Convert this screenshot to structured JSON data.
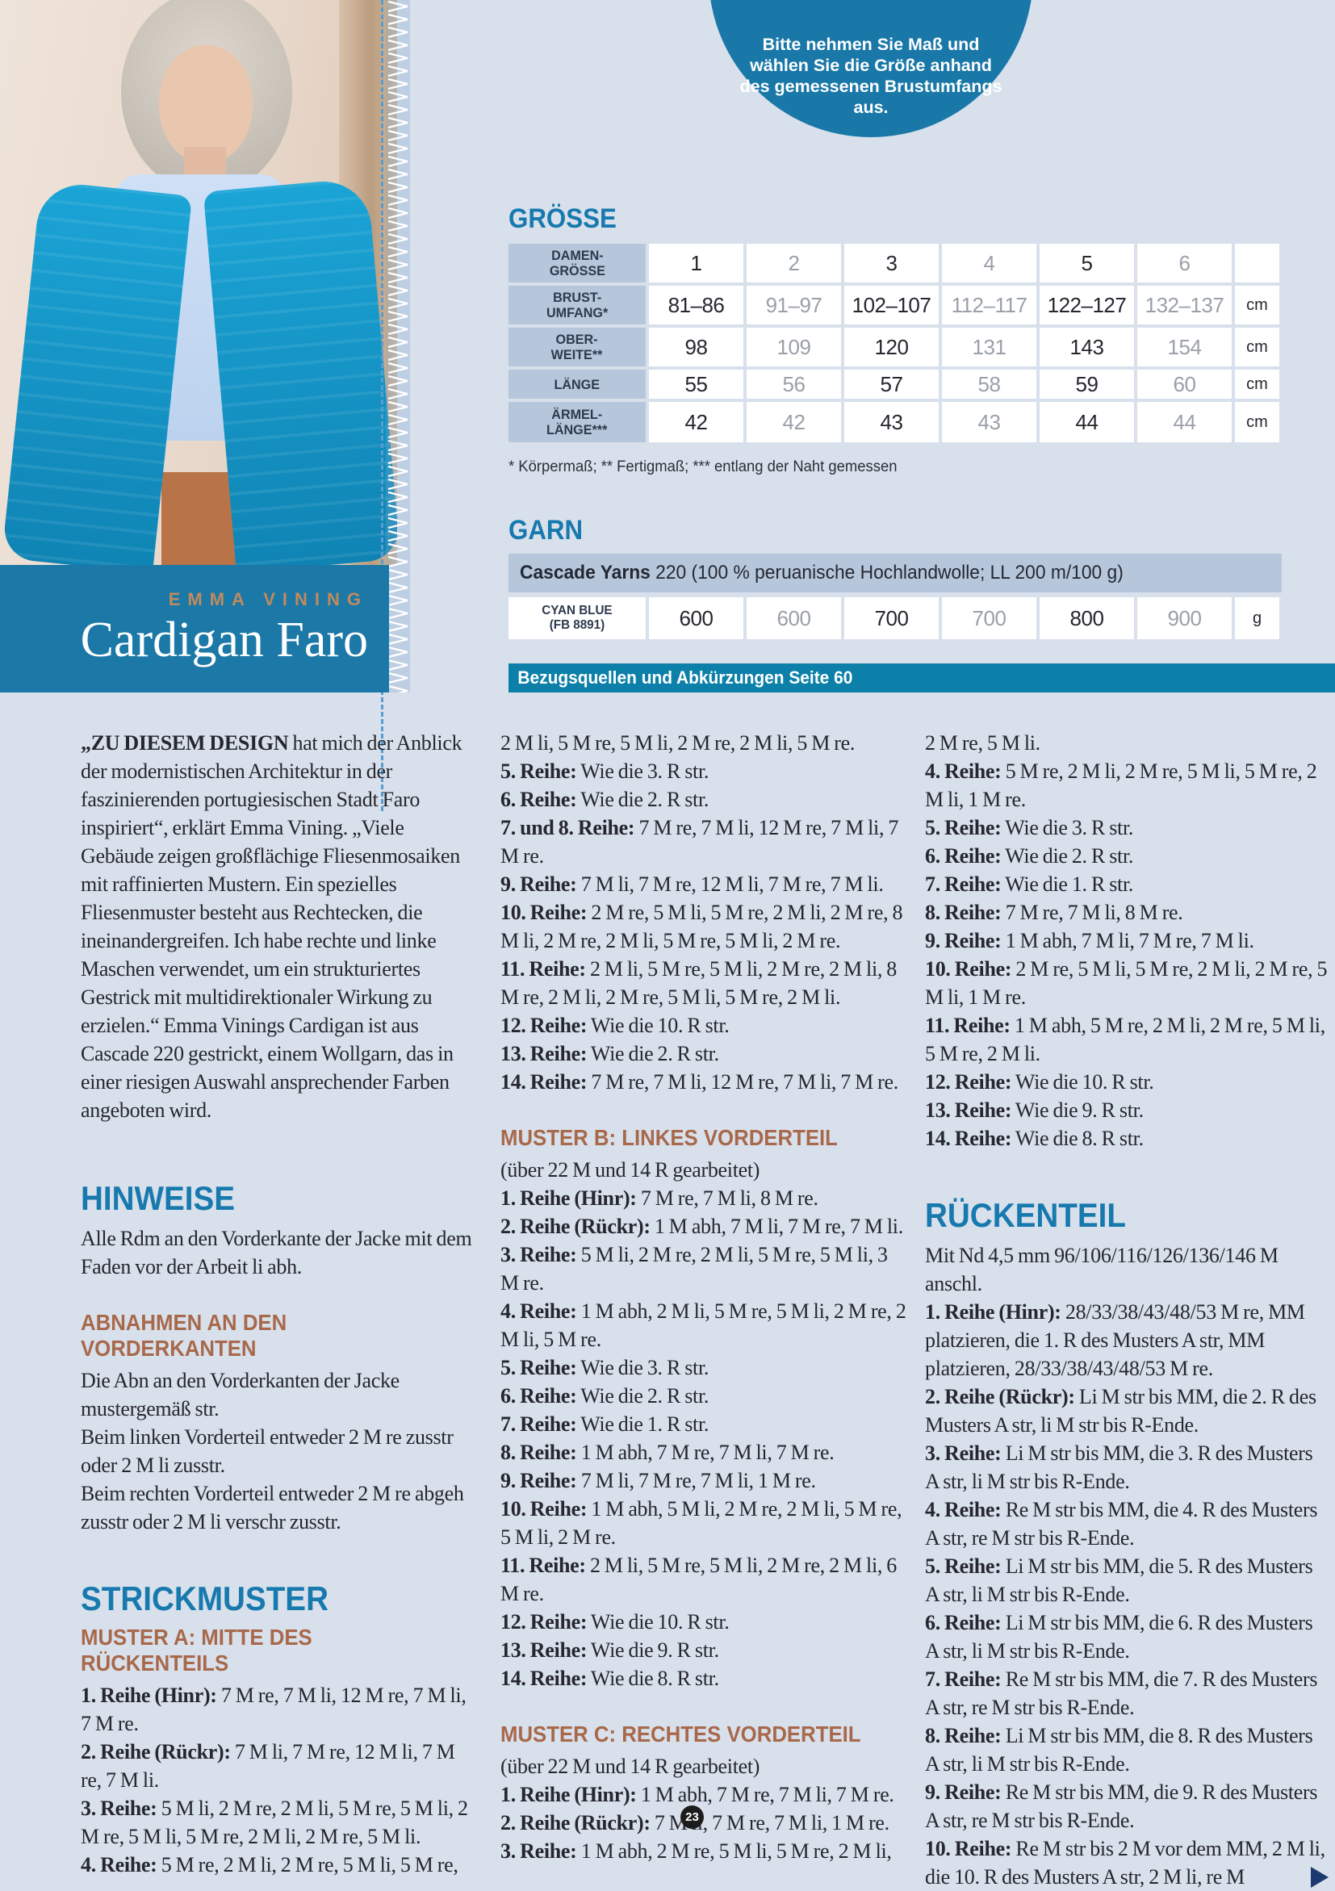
{
  "colors": {
    "accent_blue": "#1779ad",
    "banner_blue": "#1b78a7",
    "teal_bar": "#0c80a9",
    "subhead_brown": "#a8684a",
    "header_cell": "#b7c7db",
    "author_tan": "#c18a5d",
    "page_bg": "#d8e0ec"
  },
  "bubble": {
    "text": "Bitte nehmen Sie Maß und wählen Sie die Größe anhand des gemessenen Brustumfangs aus."
  },
  "byline": {
    "author": "EMMA VINING",
    "title": "Cardigan Faro"
  },
  "size_section": {
    "title": "GRÖSSE",
    "rows": [
      {
        "label": "DAMEN-\nGRÖSSE",
        "values": [
          "1",
          "2",
          "3",
          "4",
          "5",
          "6"
        ],
        "unit": ""
      },
      {
        "label": "BRUST-\nUMFANG*",
        "values": [
          "81–86",
          "91–97",
          "102–107",
          "112–117",
          "122–127",
          "132–137"
        ],
        "unit": "cm"
      },
      {
        "label": "OBER-\nWEITE**",
        "values": [
          "98",
          "109",
          "120",
          "131",
          "143",
          "154"
        ],
        "unit": "cm"
      },
      {
        "label": "LÄNGE",
        "values": [
          "55",
          "56",
          "57",
          "58",
          "59",
          "60"
        ],
        "unit": "cm"
      },
      {
        "label": "ÄRMEL-\nLÄNGE***",
        "values": [
          "42",
          "42",
          "43",
          "43",
          "44",
          "44"
        ],
        "unit": "cm"
      }
    ],
    "footnote": "* Körpermaß; ** Fertigmaß; *** entlang der Naht gemessen"
  },
  "garn_section": {
    "title": "GARN",
    "yarn_bold": "Cascade Yarns",
    "yarn_rest": " 220 (100 % peruanische Hochlandwolle; LL 200 m/100 g)",
    "color_label": "CYAN BLUE\n(FB 8891)",
    "values": [
      "600",
      "600",
      "700",
      "700",
      "800",
      "900"
    ],
    "unit": "g"
  },
  "ref_bar": {
    "text": "Bezugsquellen und Abkürzungen Seite 60"
  },
  "page": {
    "page_number": "23"
  },
  "columns": {
    "left": [
      {
        "type": "intro",
        "bold": "„ZU DIESEM DESIGN",
        "text": " hat mich der Anblick der modernistischen Architektur in der faszinierenden portugiesischen Stadt Faro inspiriert“, erklärt Emma Vining. „Viele Gebäude zeigen großflächige Fliesenmosaiken mit raffinierten Mustern. Ein spezielles Fliesenmuster besteht aus Rechtecken, die ineinandergreifen. Ich habe rechte und linke Maschen verwendet, um ein strukturiertes Gestrick mit multidirektionaler Wirkung zu erzielen.“ Emma Vinings Cardigan ist aus Cascade 220 gestrickt, einem Wollgarn, das in einer riesigen Auswahl ansprechender Farben angeboten wird."
      },
      {
        "type": "h1",
        "text": "HINWEISE"
      },
      {
        "type": "p",
        "text": "Alle Rdm an den Vorderkante der Jacke mit dem Faden vor der Arbeit li abh."
      },
      {
        "type": "h2",
        "text": "ABNAHMEN AN DEN VORDERKANTEN"
      },
      {
        "type": "p",
        "text": "Die Abn an den Vorderkanten der Jacke mustergemäß str."
      },
      {
        "type": "p",
        "text": "Beim linken Vorderteil entweder 2 M re zusstr oder 2 M li zusstr."
      },
      {
        "type": "p",
        "text": "Beim rechten Vorderteil entweder 2 M re abgeh zusstr oder 2 M li verschr zusstr."
      },
      {
        "type": "h1",
        "text": "STRICKMUSTER"
      },
      {
        "type": "h2",
        "text": "MUSTER A: MITTE DES RÜCKENTEILS"
      },
      {
        "type": "p",
        "bold": "1. Reihe (Hinr):",
        "text": " 7 M re, 7 M li, 12 M re, 7 M li, 7 M re."
      },
      {
        "type": "p",
        "bold": "2. Reihe (Rückr):",
        "text": " 7 M li, 7 M re, 12 M li, 7 M re, 7 M li."
      },
      {
        "type": "p",
        "bold": "3. Reihe:",
        "text": " 5 M li, 2 M re, 2 M li, 5 M re, 5 M li, 2 M re, 5 M li, 5 M re, 2 M li, 2 M re, 5 M li."
      },
      {
        "type": "p",
        "bold": "4. Reihe:",
        "text": " 5 M re, 2 M li, 2 M re, 5 M li, 5 M re,"
      }
    ],
    "middle": [
      {
        "type": "p",
        "text": "2 M li, 5 M re, 5 M li, 2 M re, 2 M li, 5 M re."
      },
      {
        "type": "p",
        "bold": "5. Reihe:",
        "text": " Wie die 3. R str."
      },
      {
        "type": "p",
        "bold": "6. Reihe:",
        "text": " Wie die 2. R str."
      },
      {
        "type": "p",
        "bold": "7. und 8. Reihe:",
        "text": " 7 M re, 7 M li, 12 M re, 7 M li, 7 M re."
      },
      {
        "type": "p",
        "bold": "9. Reihe:",
        "text": " 7 M li, 7 M re, 12 M li, 7 M re, 7 M li."
      },
      {
        "type": "p",
        "bold": "10. Reihe:",
        "text": " 2 M re, 5 M li, 5 M re, 2 M li, 2 M re, 8 M li, 2 M re, 2 M li, 5 M re, 5 M li, 2 M re."
      },
      {
        "type": "p",
        "bold": "11. Reihe:",
        "text": " 2 M li, 5 M re, 5 M li, 2 M re, 2 M li, 8 M re, 2 M li, 2 M re, 5 M li, 5 M re, 2 M li."
      },
      {
        "type": "p",
        "bold": "12. Reihe:",
        "text": " Wie die 10. R str."
      },
      {
        "type": "p",
        "bold": "13. Reihe:",
        "text": " Wie die 2. R str."
      },
      {
        "type": "p",
        "bold": "14. Reihe:",
        "text": " 7 M re, 7 M li, 12 M re, 7 M li, 7 M re."
      },
      {
        "type": "h2",
        "text": "MUSTER B: LINKES VORDERTEIL"
      },
      {
        "type": "p",
        "text": "(über 22 M und 14 R gearbeitet)"
      },
      {
        "type": "p",
        "bold": "1. Reihe (Hinr):",
        "text": " 7 M re, 7 M li, 8 M re."
      },
      {
        "type": "p",
        "bold": "2. Reihe (Rückr):",
        "text": " 1 M abh, 7 M li, 7 M re, 7 M li."
      },
      {
        "type": "p",
        "bold": "3. Reihe:",
        "text": " 5 M li, 2 M re, 2 M li, 5 M re, 5 M li, 3 M re."
      },
      {
        "type": "p",
        "bold": "4. Reihe:",
        "text": " 1 M abh, 2 M li, 5 M re, 5 M li, 2 M re, 2 M li, 5 M re."
      },
      {
        "type": "p",
        "bold": "5. Reihe:",
        "text": " Wie die 3. R str."
      },
      {
        "type": "p",
        "bold": "6. Reihe:",
        "text": " Wie die 2. R str."
      },
      {
        "type": "p",
        "bold": "7. Reihe:",
        "text": " Wie die 1. R str."
      },
      {
        "type": "p",
        "bold": "8. Reihe:",
        "text": " 1 M abh, 7 M re, 7 M li, 7 M re."
      },
      {
        "type": "p",
        "bold": "9. Reihe:",
        "text": " 7 M li, 7 M re, 7 M li, 1 M re."
      },
      {
        "type": "p",
        "bold": "10. Reihe:",
        "text": " 1 M abh, 5 M li, 2 M re, 2 M li, 5 M re, 5 M li, 2 M re."
      },
      {
        "type": "p",
        "bold": "11. Reihe:",
        "text": " 2 M li, 5 M re, 5 M li, 2 M re, 2 M li, 6 M re."
      },
      {
        "type": "p",
        "bold": "12. Reihe:",
        "text": " Wie die 10. R str."
      },
      {
        "type": "p",
        "bold": "13. Reihe:",
        "text": " Wie die 9. R str."
      },
      {
        "type": "p",
        "bold": "14. Reihe:",
        "text": " Wie die 8. R str."
      },
      {
        "type": "h2",
        "text": "MUSTER C: RECHTES VORDERTEIL"
      },
      {
        "type": "p",
        "text": "(über 22 M und 14 R gearbeitet)"
      },
      {
        "type": "p",
        "bold": "1. Reihe (Hinr):",
        "text": " 1 M abh, 7 M re, 7 M li, 7 M re."
      },
      {
        "type": "p",
        "bold": "2. Reihe (Rückr):",
        "text": " 7 M li, 7 M re, 7 M li, 1 M re."
      },
      {
        "type": "p",
        "bold": "3. Reihe:",
        "text": " 1 M abh, 2 M re, 5 M li, 5 M re, 2 M li,"
      }
    ],
    "right": [
      {
        "type": "p",
        "text": "2 M re, 5 M li."
      },
      {
        "type": "p",
        "bold": "4. Reihe:",
        "text": " 5 M re, 2 M li, 2 M re, 5 M li, 5 M re, 2 M li, 1 M re."
      },
      {
        "type": "p",
        "bold": "5. Reihe:",
        "text": " Wie die 3. R str."
      },
      {
        "type": "p",
        "bold": "6. Reihe:",
        "text": " Wie die 2. R str."
      },
      {
        "type": "p",
        "bold": "7. Reihe:",
        "text": " Wie die 1. R str."
      },
      {
        "type": "p",
        "bold": "8. Reihe:",
        "text": " 7 M re, 7 M li, 8 M re."
      },
      {
        "type": "p",
        "bold": "9. Reihe:",
        "text": " 1 M abh, 7 M li, 7 M re, 7 M li."
      },
      {
        "type": "p",
        "bold": "10. Reihe:",
        "text": " 2 M re, 5 M li, 5 M re, 2 M li, 2 M re, 5 M li, 1 M re."
      },
      {
        "type": "p",
        "bold": "11. Reihe:",
        "text": " 1 M abh, 5 M re, 2 M li, 2 M re, 5 M li, 5 M re, 2 M li."
      },
      {
        "type": "p",
        "bold": "12. Reihe:",
        "text": " Wie die 10. R str."
      },
      {
        "type": "p",
        "bold": "13. Reihe:",
        "text": " Wie die 9. R str."
      },
      {
        "type": "p",
        "bold": "14. Reihe:",
        "text": " Wie die 8. R str."
      },
      {
        "type": "h1",
        "text": "RÜCKENTEIL"
      },
      {
        "type": "p",
        "text": "Mit Nd 4,5 mm 96/106/116/126/136/146 M anschl."
      },
      {
        "type": "p",
        "bold": "1. Reihe (Hinr):",
        "text": " 28/33/38/43/48/53 M re, MM platzieren, die 1. R des Musters A str, MM platzieren, 28/33/38/43/48/53 M re."
      },
      {
        "type": "p",
        "bold": "2. Reihe (Rückr):",
        "text": " Li M str bis MM, die 2. R des Musters A str, li M str bis R-Ende."
      },
      {
        "type": "p",
        "bold": "3. Reihe:",
        "text": " Li M str bis MM, die 3. R des Musters A str, li M str bis R-Ende."
      },
      {
        "type": "p",
        "bold": "4. Reihe:",
        "text": " Re M str bis MM, die 4. R des Musters A str, re M str bis R-Ende."
      },
      {
        "type": "p",
        "bold": "5. Reihe:",
        "text": " Li M str bis MM, die 5. R des Musters A str, li M str bis R-Ende."
      },
      {
        "type": "p",
        "bold": "6. Reihe:",
        "text": " Li M str bis MM, die 6. R des Musters A str, li M str bis R-Ende."
      },
      {
        "type": "p",
        "bold": "7. Reihe:",
        "text": " Re M str bis MM, die 7. R des Musters A str, re M str bis R-Ende."
      },
      {
        "type": "p",
        "bold": "8. Reihe:",
        "text": " Li M str bis MM, die 8. R des Musters A str, li M str bis R-Ende."
      },
      {
        "type": "p",
        "bold": "9. Reihe:",
        "text": " Re M str bis MM, die 9. R des Musters A str, re M str bis R-Ende."
      },
      {
        "type": "p",
        "bold": "10. Reihe:",
        "text": " Re M str bis 2 M vor dem MM, 2 M li, die 10. R des Musters A str, 2 M li, re M",
        "arrow": true
      }
    ]
  }
}
